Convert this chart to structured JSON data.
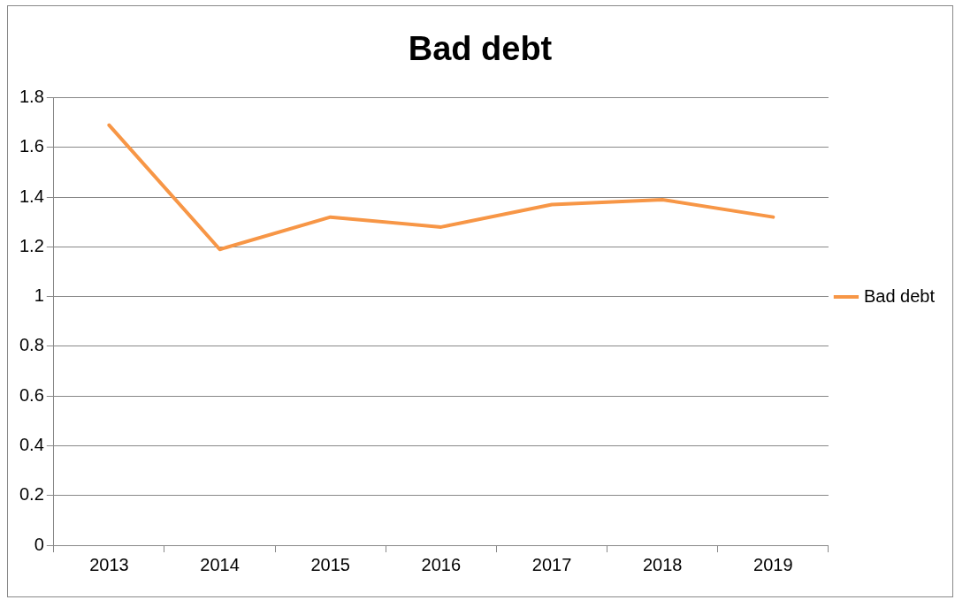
{
  "chart_data": {
    "type": "line",
    "title": "Bad debt",
    "categories": [
      "2013",
      "2014",
      "2015",
      "2016",
      "2017",
      "2018",
      "2019"
    ],
    "series": [
      {
        "name": "Bad debt",
        "color": "#f79646",
        "values": [
          1.69,
          1.19,
          1.32,
          1.28,
          1.37,
          1.39,
          1.32
        ]
      }
    ],
    "ylim": [
      0,
      1.8
    ],
    "yticks": [
      0,
      0.2,
      0.4,
      0.6,
      0.8,
      1,
      1.2,
      1.4,
      1.6,
      1.8
    ],
    "grid": "y",
    "legend": "right",
    "marker": "none",
    "line_style": "solid"
  }
}
